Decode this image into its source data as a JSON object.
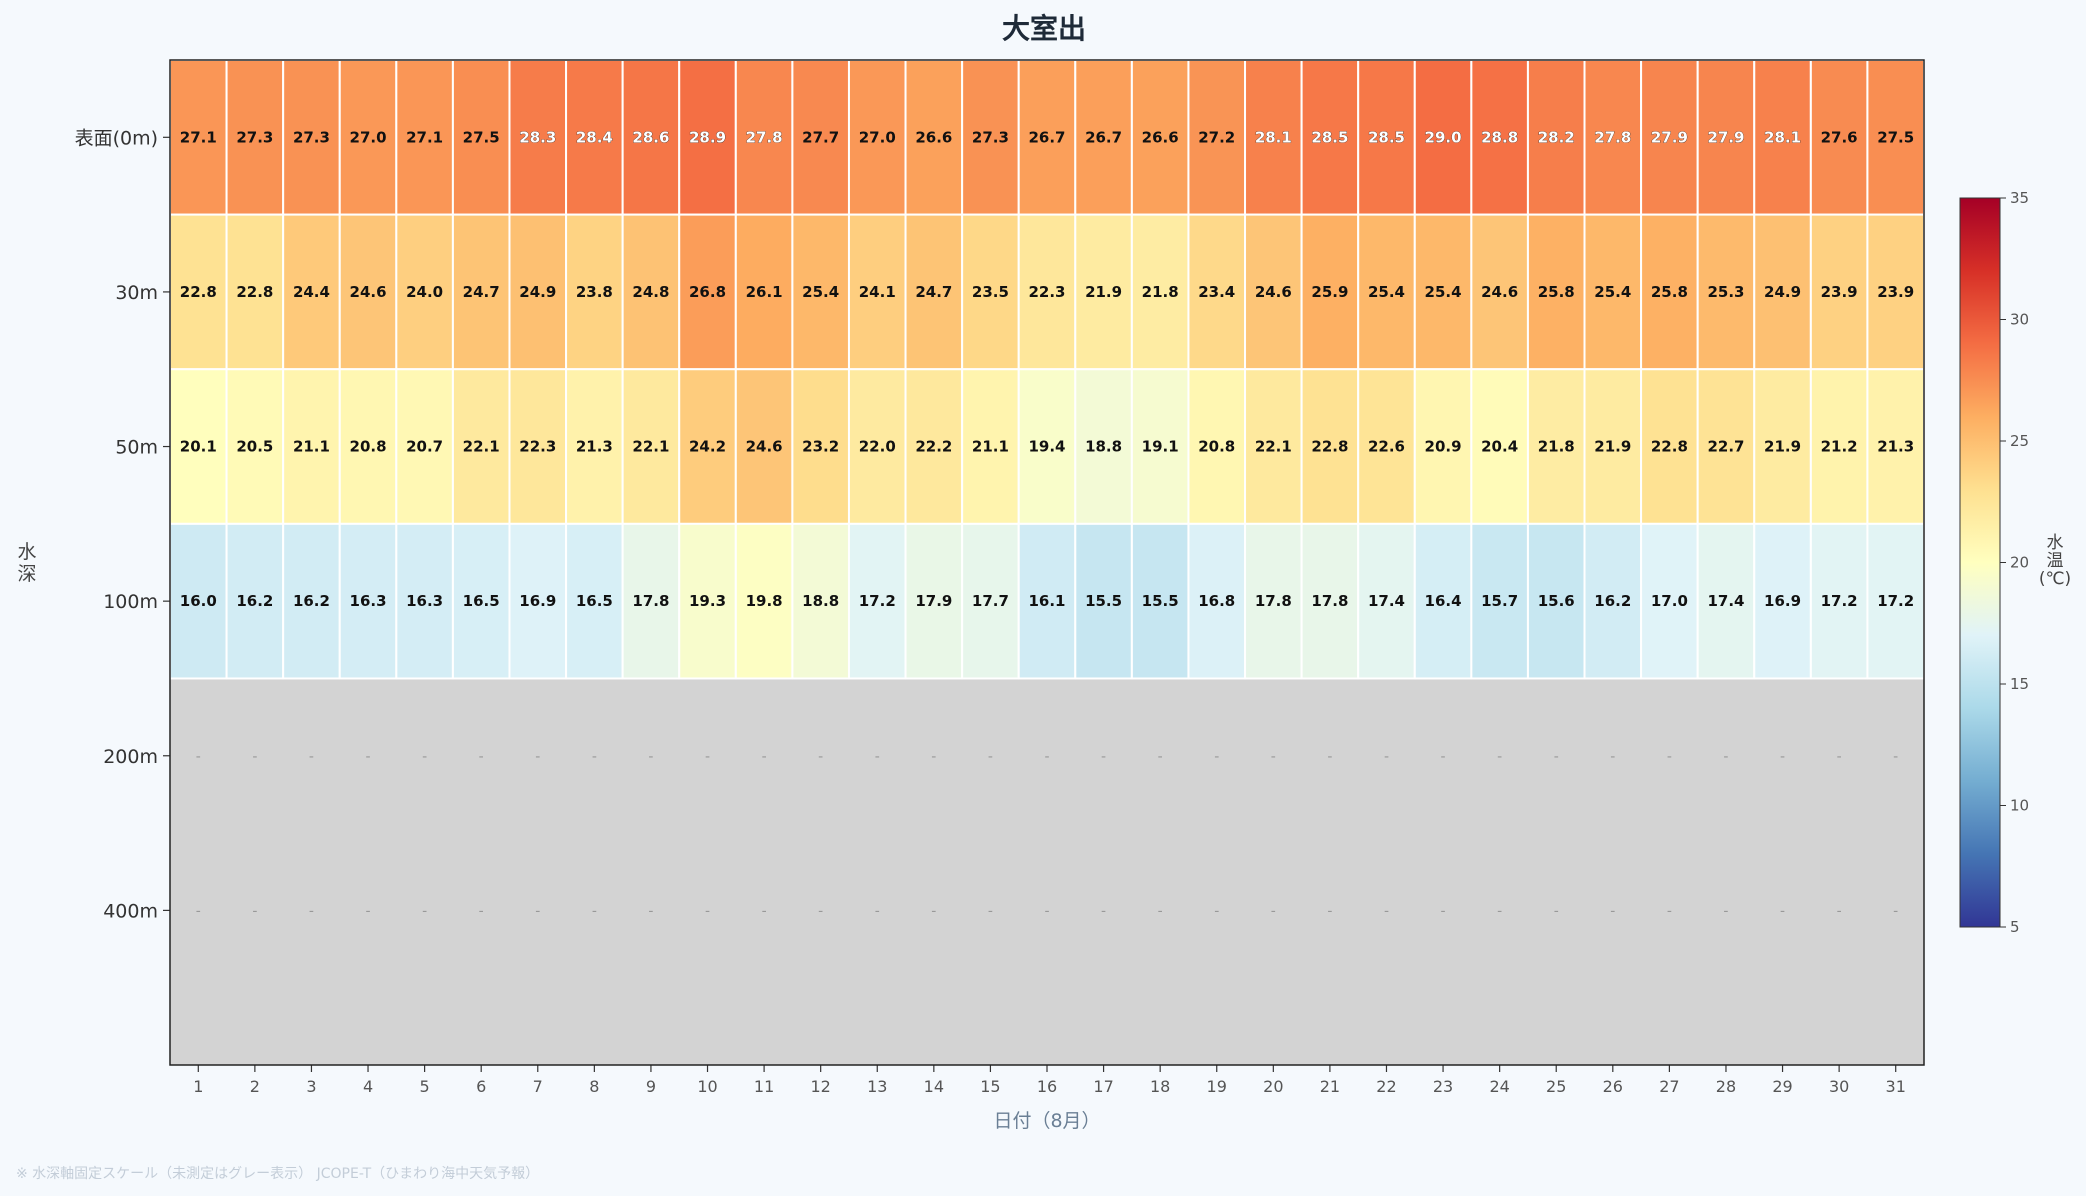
{
  "chart_data": {
    "type": "heatmap",
    "title": "大室出",
    "xlabel": "日付（8月）",
    "ylabel": "水深",
    "footnote": "※ 水深軸固定スケール（未測定はグレー表示） JCOPE-T（ひまわり海中天気予報）",
    "x": [
      1,
      2,
      3,
      4,
      5,
      6,
      7,
      8,
      9,
      10,
      11,
      12,
      13,
      14,
      15,
      16,
      17,
      18,
      19,
      20,
      21,
      22,
      23,
      24,
      25,
      26,
      27,
      28,
      29,
      30,
      31
    ],
    "y": [
      "表面(0m)",
      "30m",
      "50m",
      "100m",
      "200m",
      "400m"
    ],
    "values": [
      [
        27.1,
        27.3,
        27.3,
        27.0,
        27.1,
        27.5,
        28.3,
        28.4,
        28.6,
        28.9,
        27.8,
        27.7,
        27.0,
        26.6,
        27.3,
        26.7,
        26.7,
        26.6,
        27.2,
        28.1,
        28.5,
        28.5,
        29.0,
        28.8,
        28.2,
        27.8,
        27.9,
        27.9,
        28.1,
        27.6,
        27.5
      ],
      [
        22.8,
        22.8,
        24.4,
        24.6,
        24.0,
        24.7,
        24.9,
        23.8,
        24.8,
        26.8,
        26.1,
        25.4,
        24.1,
        24.7,
        23.5,
        22.3,
        21.9,
        21.8,
        23.4,
        24.6,
        25.9,
        25.4,
        25.4,
        24.6,
        25.8,
        25.4,
        25.8,
        25.3,
        24.9,
        23.9,
        23.9
      ],
      [
        20.1,
        20.5,
        21.1,
        20.8,
        20.7,
        22.1,
        22.3,
        21.3,
        22.1,
        24.2,
        24.6,
        23.2,
        22.0,
        22.2,
        21.1,
        19.4,
        18.8,
        19.1,
        20.8,
        22.1,
        22.8,
        22.6,
        20.9,
        20.4,
        21.8,
        21.9,
        22.8,
        22.7,
        21.9,
        21.2,
        21.3
      ],
      [
        16.0,
        16.2,
        16.2,
        16.3,
        16.3,
        16.5,
        16.9,
        16.5,
        17.8,
        19.3,
        19.8,
        18.8,
        17.2,
        17.9,
        17.7,
        16.1,
        15.5,
        15.5,
        16.8,
        17.8,
        17.8,
        17.4,
        16.4,
        15.7,
        15.6,
        16.2,
        17.0,
        17.4,
        16.9,
        17.2,
        17.2
      ],
      [
        null,
        null,
        null,
        null,
        null,
        null,
        null,
        null,
        null,
        null,
        null,
        null,
        null,
        null,
        null,
        null,
        null,
        null,
        null,
        null,
        null,
        null,
        null,
        null,
        null,
        null,
        null,
        null,
        null,
        null,
        null
      ],
      [
        null,
        null,
        null,
        null,
        null,
        null,
        null,
        null,
        null,
        null,
        null,
        null,
        null,
        null,
        null,
        null,
        null,
        null,
        null,
        null,
        null,
        null,
        null,
        null,
        null,
        null,
        null,
        null,
        null,
        null,
        null
      ]
    ],
    "missing_label": "-",
    "missing_color": "#d3d3d3",
    "colorscale": "RdYlBu_r",
    "colorbar": {
      "label": "水温(℃)",
      "range": [
        5,
        35
      ],
      "ticks": [
        5,
        10,
        15,
        20,
        25,
        30,
        35
      ]
    }
  }
}
